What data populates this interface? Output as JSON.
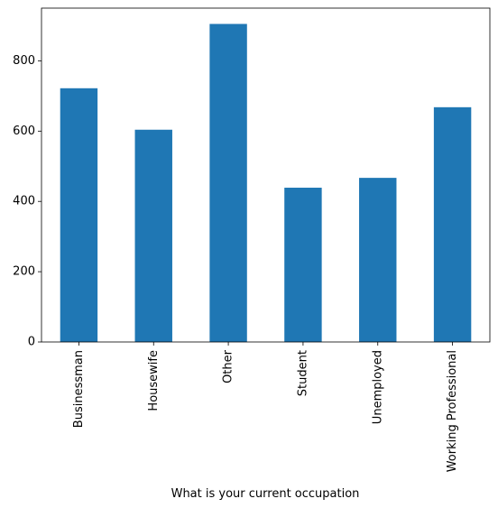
{
  "chart_data": {
    "type": "bar",
    "title": "",
    "xlabel": "What is your current occupation",
    "ylabel": "",
    "categories": [
      "Businessman",
      "Housewife",
      "Other",
      "Student",
      "Unemployed",
      "Working Professional"
    ],
    "values": [
      722,
      604,
      905,
      439,
      467,
      668
    ],
    "ylim": [
      0,
      950
    ],
    "yticks": [
      0,
      200,
      400,
      600,
      800
    ],
    "bar_color": "#1f77b4",
    "grid": false,
    "legend": "none"
  }
}
